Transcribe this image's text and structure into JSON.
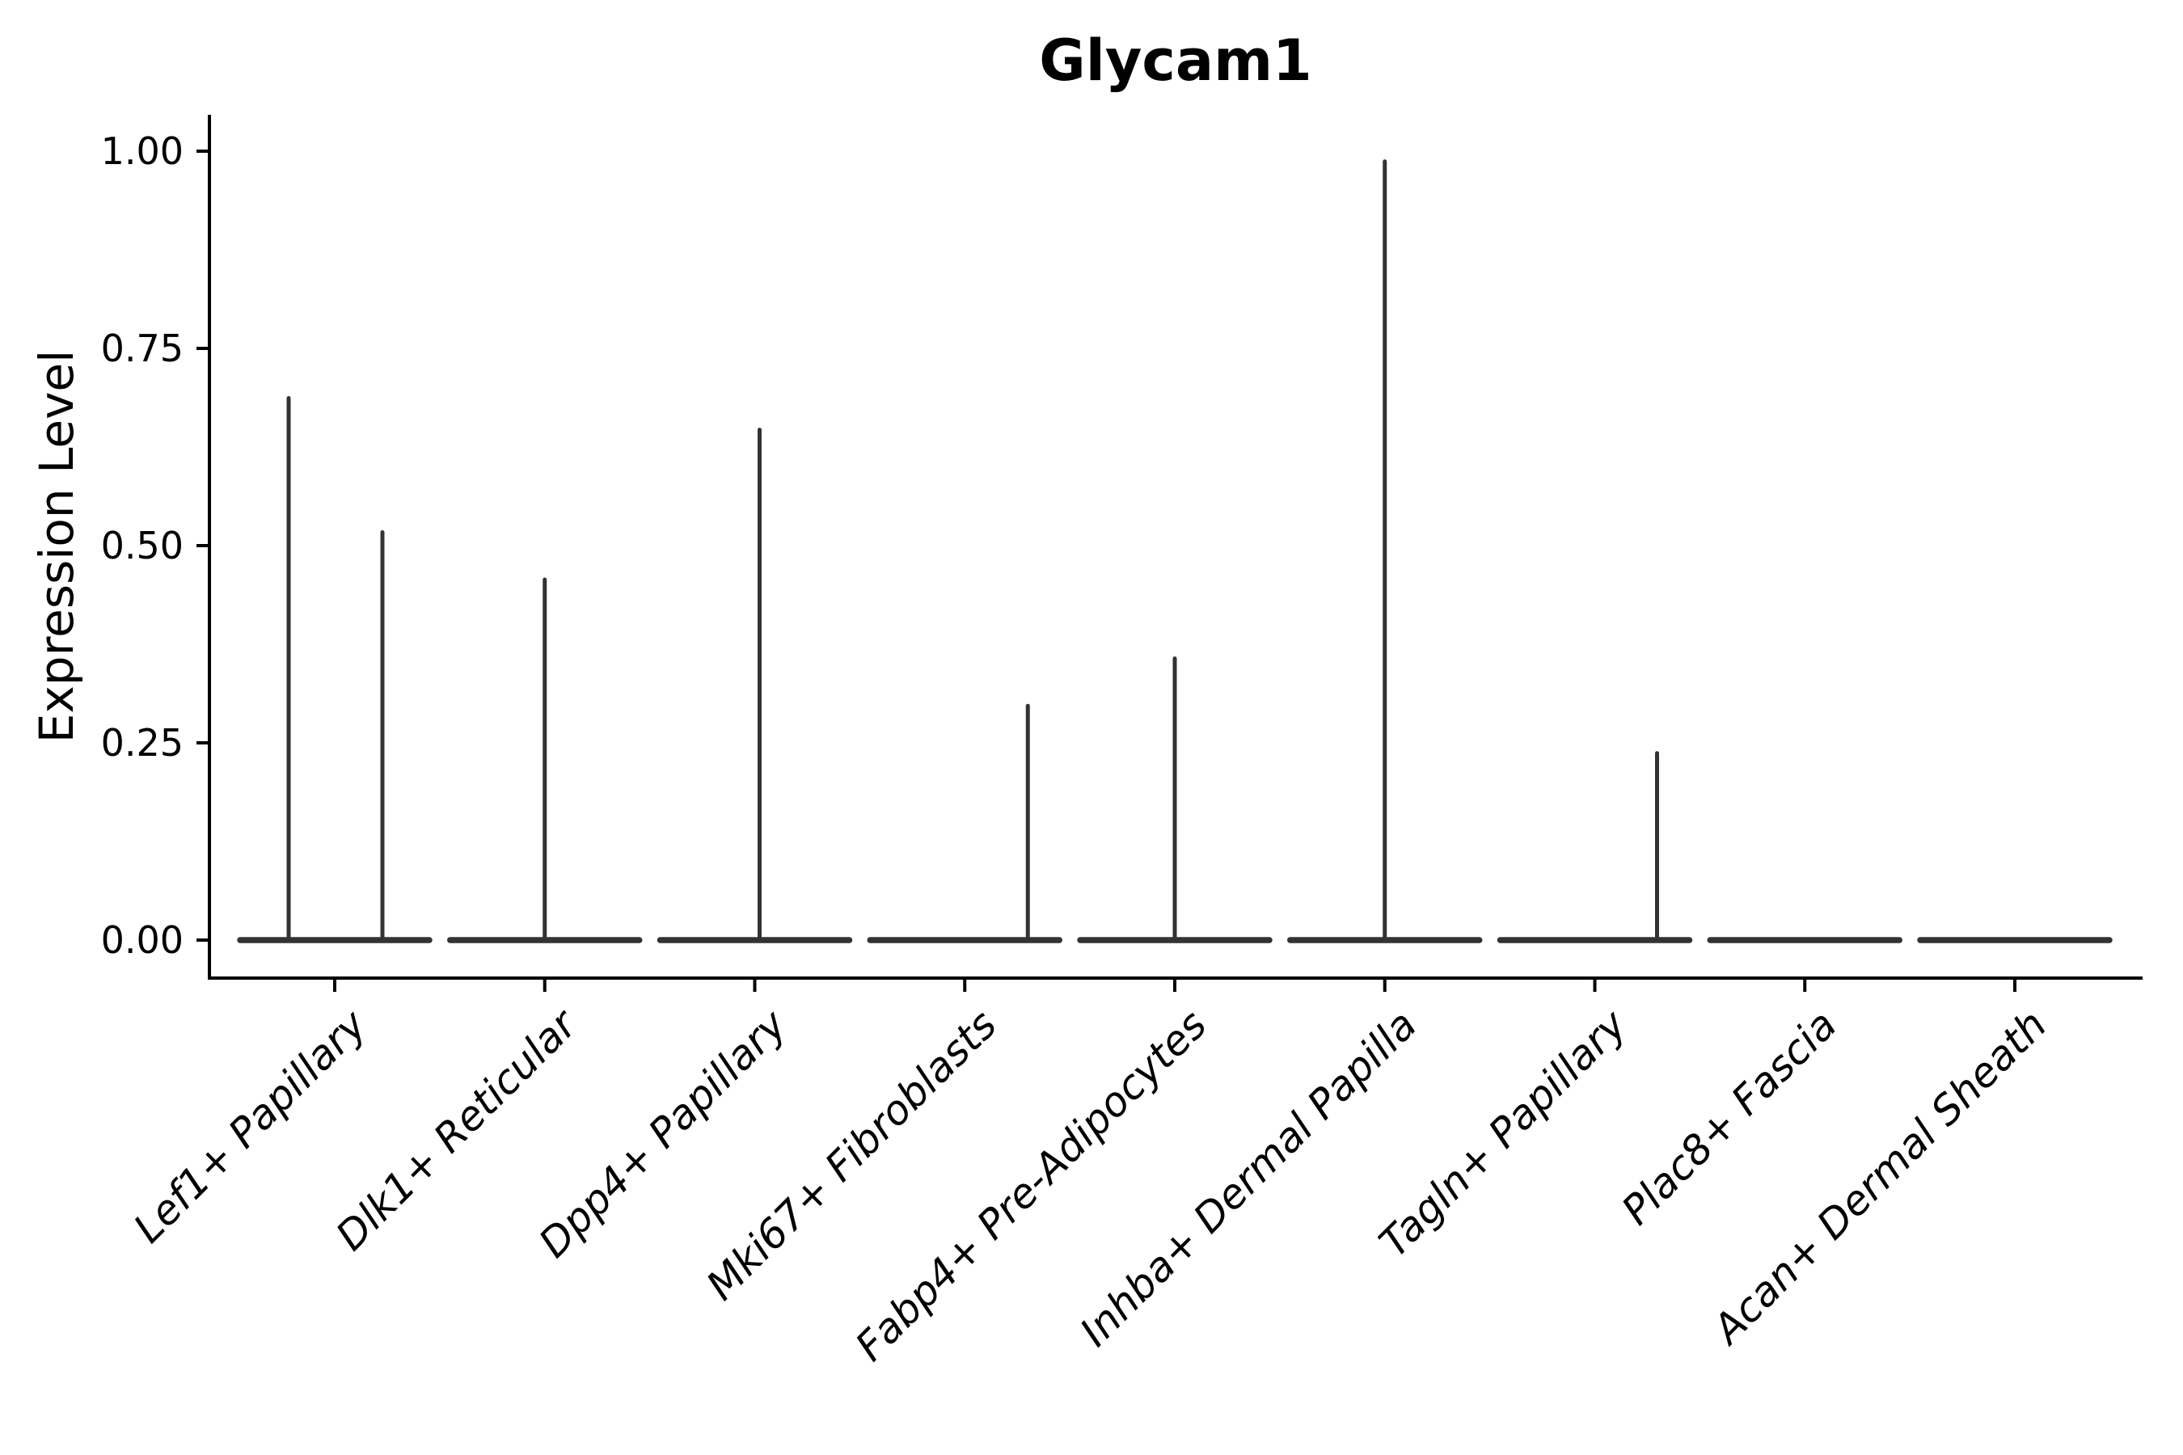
{
  "figure": {
    "title": "Glycam1"
  },
  "chart_data": {
    "type": "violin",
    "title": "Glycam1",
    "xlabel": "",
    "ylabel": "Expression Level",
    "ylim": [
      0,
      1
    ],
    "yticks": [
      {
        "label": "1.00",
        "value": 1.0
      },
      {
        "label": "0.75",
        "value": 0.75
      },
      {
        "label": "0.50",
        "value": 0.5
      },
      {
        "label": "0.25",
        "value": 0.25
      },
      {
        "label": "0.00",
        "value": 0.0
      }
    ],
    "categories": [
      "Lef1+ Papillary",
      "Dlk1+ Reticular",
      "Dpp4+ Papillary",
      "Mki67+ Fibroblasts",
      "Fabp4+ Pre-Adipocytes",
      "Inhba+ Dermal Papilla",
      "Tagln+ Papillary",
      "Plac8+ Fascia",
      "Acan+ Dermal Sheath"
    ],
    "violins": [
      {
        "category": "Lef1+ Papillary",
        "max_expression": 0.69,
        "spikes": [
          {
            "dx": -57,
            "value": 0.69
          },
          {
            "dx": 59,
            "value": 0.52
          }
        ]
      },
      {
        "category": "Dlk1+ Reticular",
        "max_expression": 0.46,
        "spikes": [
          {
            "dx": 0,
            "value": 0.46
          }
        ]
      },
      {
        "category": "Dpp4+ Papillary",
        "max_expression": 0.65,
        "spikes": [
          {
            "dx": 6,
            "value": 0.65
          }
        ]
      },
      {
        "category": "Mki67+ Fibroblasts",
        "max_expression": 0.3,
        "spikes": [
          {
            "dx": 78,
            "value": 0.3
          }
        ]
      },
      {
        "category": "Fabp4+ Pre-Adipocytes",
        "max_expression": 0.36,
        "spikes": [
          {
            "dx": 0,
            "value": 0.36
          }
        ]
      },
      {
        "category": "Inhba+ Dermal Papilla",
        "max_expression": 0.99,
        "spikes": [
          {
            "dx": 0,
            "value": 0.99
          }
        ]
      },
      {
        "category": "Tagln+ Papillary",
        "max_expression": 0.24,
        "spikes": [
          {
            "dx": 77,
            "value": 0.24
          }
        ]
      },
      {
        "category": "Plac8+ Fascia",
        "max_expression": 0.0,
        "spikes": []
      },
      {
        "category": "Acan+ Dermal Sheath",
        "max_expression": 0.0,
        "spikes": []
      }
    ],
    "layout_hints": {
      "legend": "none",
      "grid": false,
      "x_tick_rotation": 45,
      "x_tick_style": "italic",
      "spines": [
        "left",
        "bottom"
      ]
    },
    "style": {
      "violin_color": "#333333",
      "axis_color": "#000000",
      "text_color": "#000000",
      "background": "#ffffff"
    }
  }
}
